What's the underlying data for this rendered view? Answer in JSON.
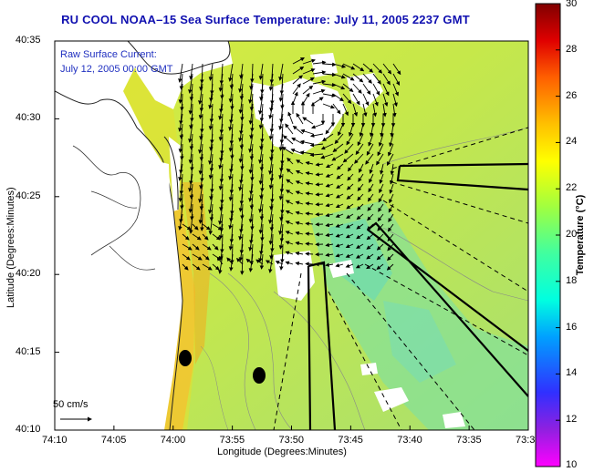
{
  "title": "RU COOL  NOAA–15  Sea Surface Temperature:  July 11, 2005 2237 GMT",
  "inset": {
    "line1": "Raw Surface Current:",
    "line2": "July 12, 2005 00:00 GMT"
  },
  "axes": {
    "xlabel": "Longitude (Degrees:Minutes)",
    "ylabel": "Latitude (Degrees:Minutes)",
    "xticks": [
      "74:10",
      "74:05",
      "74:00",
      "73:55",
      "73:50",
      "73:45",
      "73:40",
      "73:35",
      "73:3"
    ],
    "yticks": [
      "40:35",
      "40:30",
      "40:25",
      "40:20",
      "40:15",
      "40:10"
    ]
  },
  "colorbar": {
    "label": "Temperature (°C)",
    "ticks": [
      "30",
      "28",
      "26",
      "24",
      "22",
      "20",
      "18",
      "16",
      "14",
      "12",
      "10"
    ],
    "min": 10,
    "max": 30
  },
  "scale_label": "50 cm/s",
  "colors": {
    "title": "#1010b0",
    "inset_text": "#2030c0",
    "sea_dominant": "#c6e84a",
    "land": "#ffffff"
  }
}
